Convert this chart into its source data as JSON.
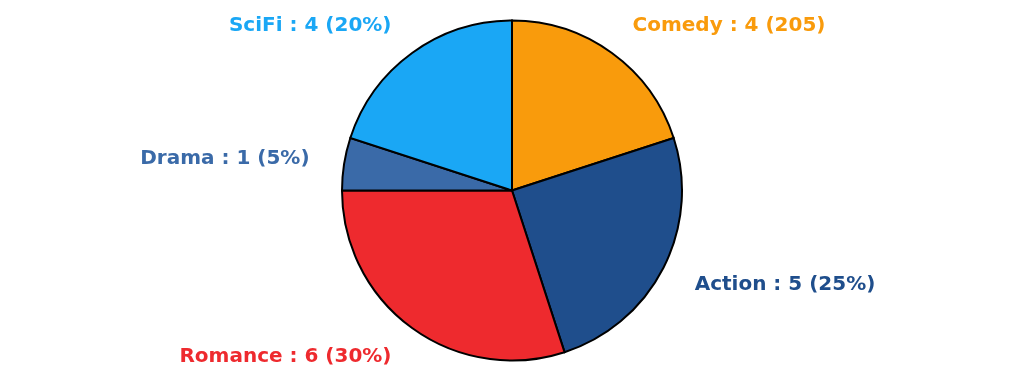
{
  "chart_data": {
    "type": "pie",
    "categories": [
      "Comedy",
      "Action",
      "Romance",
      "Drama",
      "SciFi"
    ],
    "values": [
      4,
      5,
      6,
      1,
      4
    ],
    "value_labels": [
      "4 (205)",
      "5 (25%)",
      "6 (30%)",
      "1 (5%)",
      "4 (20%)"
    ],
    "colors": [
      "#f99b0c",
      "#1f4e8c",
      "#ee2a2e",
      "#3a6aa8",
      "#1aa7f5"
    ]
  }
}
